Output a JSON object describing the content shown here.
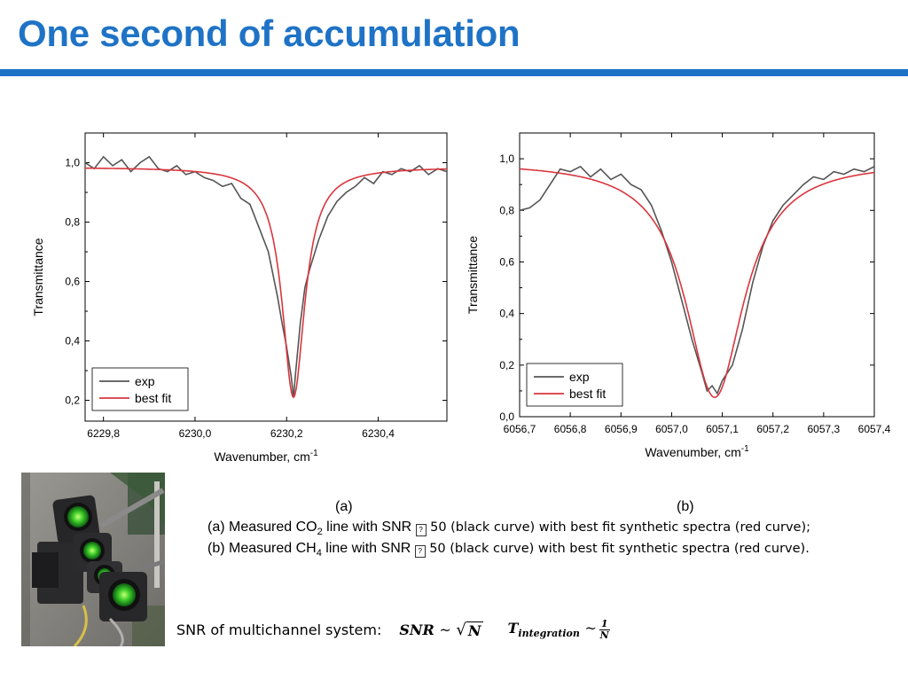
{
  "title": "One second of accumulation",
  "chart_data": [
    {
      "type": "line",
      "panel": "(a)",
      "xlabel": "Wavenumber, cm",
      "xlabel_sup": "-1",
      "ylabel": "Transmittance",
      "xlim": [
        6229.76,
        6230.55
      ],
      "ylim": [
        0.13,
        1.1
      ],
      "x_ticks": [
        "6229,8",
        "6230,0",
        "6230,2",
        "6230,4"
      ],
      "x_tick_values": [
        6229.8,
        6230.0,
        6230.2,
        6230.4
      ],
      "y_ticks": [
        "0,2",
        "0,4",
        "0,6",
        "0,8",
        "1,0"
      ],
      "y_tick_values": [
        0.2,
        0.4,
        0.6,
        0.8,
        1.0
      ],
      "fit_params": {
        "baseline": 0.985,
        "center": 6230.215,
        "depth": 0.775,
        "hwhm": 0.03
      },
      "series": [
        {
          "name": "exp",
          "color": "#555555",
          "x": [
            6229.76,
            6229.78,
            6229.8,
            6229.82,
            6229.84,
            6229.86,
            6229.88,
            6229.9,
            6229.92,
            6229.94,
            6229.96,
            6229.98,
            6230.0,
            6230.02,
            6230.04,
            6230.06,
            6230.08,
            6230.1,
            6230.12,
            6230.14,
            6230.16,
            6230.18,
            6230.19,
            6230.2,
            6230.21,
            6230.215,
            6230.22,
            6230.23,
            6230.24,
            6230.25,
            6230.27,
            6230.29,
            6230.31,
            6230.33,
            6230.35,
            6230.37,
            6230.39,
            6230.41,
            6230.43,
            6230.45,
            6230.47,
            6230.49,
            6230.51,
            6230.53,
            6230.55
          ],
          "y": [
            1.0,
            0.98,
            1.02,
            0.99,
            1.01,
            0.97,
            1.0,
            1.02,
            0.98,
            0.97,
            0.99,
            0.96,
            0.97,
            0.95,
            0.94,
            0.92,
            0.93,
            0.88,
            0.86,
            0.78,
            0.7,
            0.55,
            0.46,
            0.38,
            0.28,
            0.21,
            0.3,
            0.46,
            0.58,
            0.64,
            0.74,
            0.82,
            0.87,
            0.9,
            0.92,
            0.95,
            0.93,
            0.97,
            0.96,
            0.98,
            0.97,
            0.99,
            0.96,
            0.98,
            0.97
          ]
        },
        {
          "name": "best fit",
          "color": "#d9363e"
        }
      ],
      "legend": "bottom-left"
    },
    {
      "type": "line",
      "panel": "(b)",
      "xlabel": "Wavenumber, cm",
      "xlabel_sup": "-1",
      "ylabel": "Transmittance",
      "xlim": [
        6056.7,
        6057.4
      ],
      "ylim": [
        0.0,
        1.1
      ],
      "x_ticks": [
        "6056,7",
        "6056,8",
        "6056,9",
        "6057,0",
        "6057,1",
        "6057,2",
        "6057,3",
        "6057,4"
      ],
      "x_tick_values": [
        6056.7,
        6056.8,
        6056.9,
        6057.0,
        6057.1,
        6057.2,
        6057.3,
        6057.4
      ],
      "y_ticks": [
        "0,0",
        "0,2",
        "0,4",
        "0,6",
        "0,8",
        "1,0"
      ],
      "y_tick_values": [
        0.0,
        0.2,
        0.4,
        0.6,
        0.8,
        1.0
      ],
      "fit_params": {
        "baseline": 0.99,
        "center": 6057.085,
        "depth": 0.915,
        "hwhm": 0.07
      },
      "series": [
        {
          "name": "exp",
          "color": "#555555",
          "x": [
            6056.7,
            6056.72,
            6056.74,
            6056.76,
            6056.78,
            6056.8,
            6056.82,
            6056.84,
            6056.86,
            6056.88,
            6056.9,
            6056.92,
            6056.94,
            6056.96,
            6056.98,
            6057.0,
            6057.02,
            6057.04,
            6057.06,
            6057.07,
            6057.08,
            6057.09,
            6057.1,
            6057.12,
            6057.14,
            6057.16,
            6057.18,
            6057.2,
            6057.22,
            6057.24,
            6057.26,
            6057.28,
            6057.3,
            6057.32,
            6057.34,
            6057.36,
            6057.38,
            6057.4
          ],
          "y": [
            0.8,
            0.81,
            0.84,
            0.9,
            0.96,
            0.95,
            0.97,
            0.93,
            0.96,
            0.92,
            0.94,
            0.9,
            0.88,
            0.82,
            0.72,
            0.6,
            0.45,
            0.3,
            0.17,
            0.1,
            0.12,
            0.09,
            0.14,
            0.2,
            0.34,
            0.52,
            0.66,
            0.76,
            0.82,
            0.86,
            0.9,
            0.93,
            0.92,
            0.95,
            0.94,
            0.96,
            0.95,
            0.97
          ]
        },
        {
          "name": "best fit",
          "color": "#d9363e"
        }
      ],
      "legend": "bottom-left"
    }
  ],
  "captions": {
    "label_a": "(a)",
    "label_b": "(b)",
    "line1_pre": "(a) Measured CO",
    "line1_sub": "2",
    "line1_mid": " line with SNR ",
    "line1_rest": "50 (black curve)  with best fit synthetic spectra (red curve);",
    "line2_pre": "(b) Measured CH",
    "line2_sub": "4",
    "line2_mid": " line with SNR ",
    "line2_rest": "50 (black curve)  with best fit synthetic spectra (red curve).",
    "missing_glyph": "?"
  },
  "snr": {
    "label": "SNR of multichannel system:",
    "formula_lhs": "SNR",
    "tilde": "~",
    "sqrt_arg": "N",
    "t_symbol": "T",
    "t_sub": "integration",
    "frac_num": "1",
    "frac_den": "N"
  }
}
